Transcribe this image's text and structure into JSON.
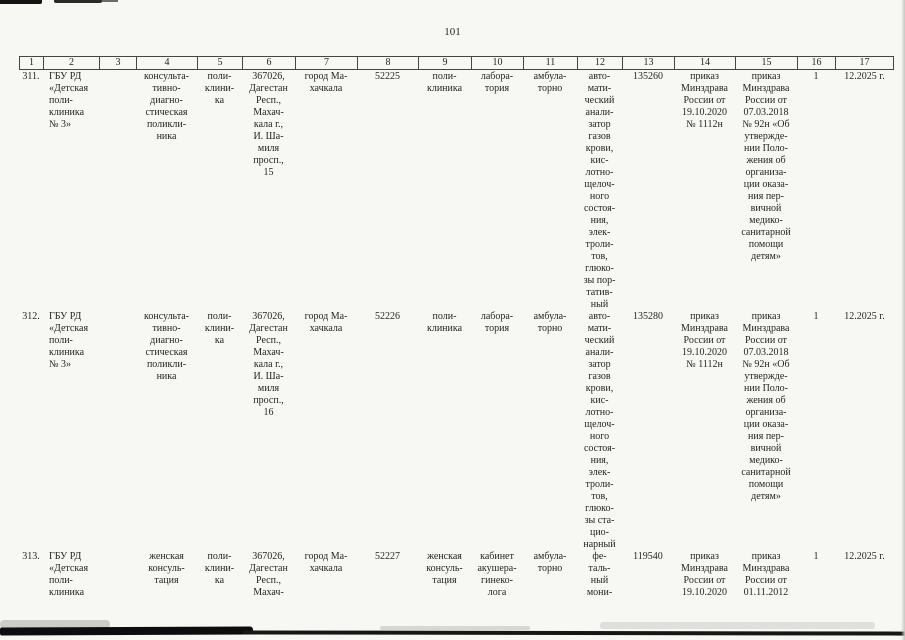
{
  "page": {
    "number": "101"
  },
  "colors": {
    "paper": "#f7f7f4",
    "ink": "#242424",
    "table_line": "#454545",
    "artifact_black": "#141414"
  },
  "table": {
    "header": [
      "1",
      "2",
      "3",
      "4",
      "5",
      "6",
      "7",
      "8",
      "9",
      "10",
      "11",
      "12",
      "13",
      "14",
      "15",
      "16",
      "17"
    ],
    "rows": [
      {
        "cells": [
          "311.",
          "ГБУ РД\n«Детская\nполи-\nклиника\n№ 3»",
          "",
          "консульта-\nтивно-\nдиагно-\nстическая\nполикли-\nника",
          "поли-\nклини-\nка",
          "367026,\nДагестан\nРесп.,\nМахач-\nкала г.,\nИ. Ша-\nмиля\nпросп.,\n15",
          "город Ма-\nхачкала",
          "52225",
          "поли-\nклиника",
          "лабора-\nтория",
          "амбула-\nторно",
          "авто-\nмати-\nческий\nанали-\nзатор\nгазов\nкрови,\nкис-\nлотно-\nщелоч-\nного\nсостоя-\nния,\nэлек-\nтроли-\nтов,\nглюко-\nзы пор-\nтатив-\nный",
          "135260",
          "приказ\nМинздрава\nРоссии от\n19.10.2020\n№ 1112н",
          "приказ\nМинздрава\nРоссии от\n07.03.2018\n№ 92н «Об\nутвержде-\nнии Поло-\nжения об\nорганиза-\nции оказа-\nния пер-\nвичной\nмедико-\nсанитарной\nпомощи\nдетям»",
          "1",
          "12.2025 г."
        ]
      },
      {
        "cells": [
          "312.",
          "ГБУ РД\n«Детская\nполи-\nклиника\n№ 3»",
          "",
          "консульта-\nтивно-\nдиагно-\nстическая\nполикли-\nника",
          "поли-\nклини-\nка",
          "367026,\nДагестан\nРесп.,\nМахач-\nкала г.,\nИ. Ша-\nмиля\nпросп.,\n16",
          "город Ма-\nхачкала",
          "52226",
          "поли-\nклиника",
          "лабора-\nтория",
          "амбула-\nторно",
          "авто-\nмати-\nческий\nанали-\nзатор\nгазов\nкрови,\nкис-\nлотно-\nщелоч-\nного\nсостоя-\nния,\nэлек-\nтроли-\nтов,\nглюко-\nзы ста-\nцио-\nнарный",
          "135280",
          "приказ\nМинздрава\nРоссии от\n19.10.2020\n№ 1112н",
          "приказ\nМинздрава\nРоссии от\n07.03.2018\n№ 92н «Об\nутвержде-\nнии Поло-\nжения об\nорганиза-\nции оказа-\nния пер-\nвичной\nмедико-\nсанитарной\nпомощи\nдетям»",
          "1",
          "12.2025 г."
        ]
      },
      {
        "cells": [
          "313.",
          "ГБУ РД\n«Детская\nполи-\nклиника",
          "",
          "женская\nконсуль-\nтация",
          "поли-\nклини-\nка",
          "367026,\nДагестан\nРесп.,\nМахач-",
          "город Ма-\nхачкала",
          "52227",
          "женская\nконсуль-\nтация",
          "кабинет\nакушера-\nгинеко-\nлога",
          "амбула-\nторно",
          "фе-\nталь-\nный\nмони-",
          "119540",
          "приказ\nМинздрава\nРоссии от\n19.10.2020",
          "приказ\nМинздрава\nРоссии от\n01.11.2012",
          "1",
          "12.2025 г."
        ]
      }
    ]
  }
}
